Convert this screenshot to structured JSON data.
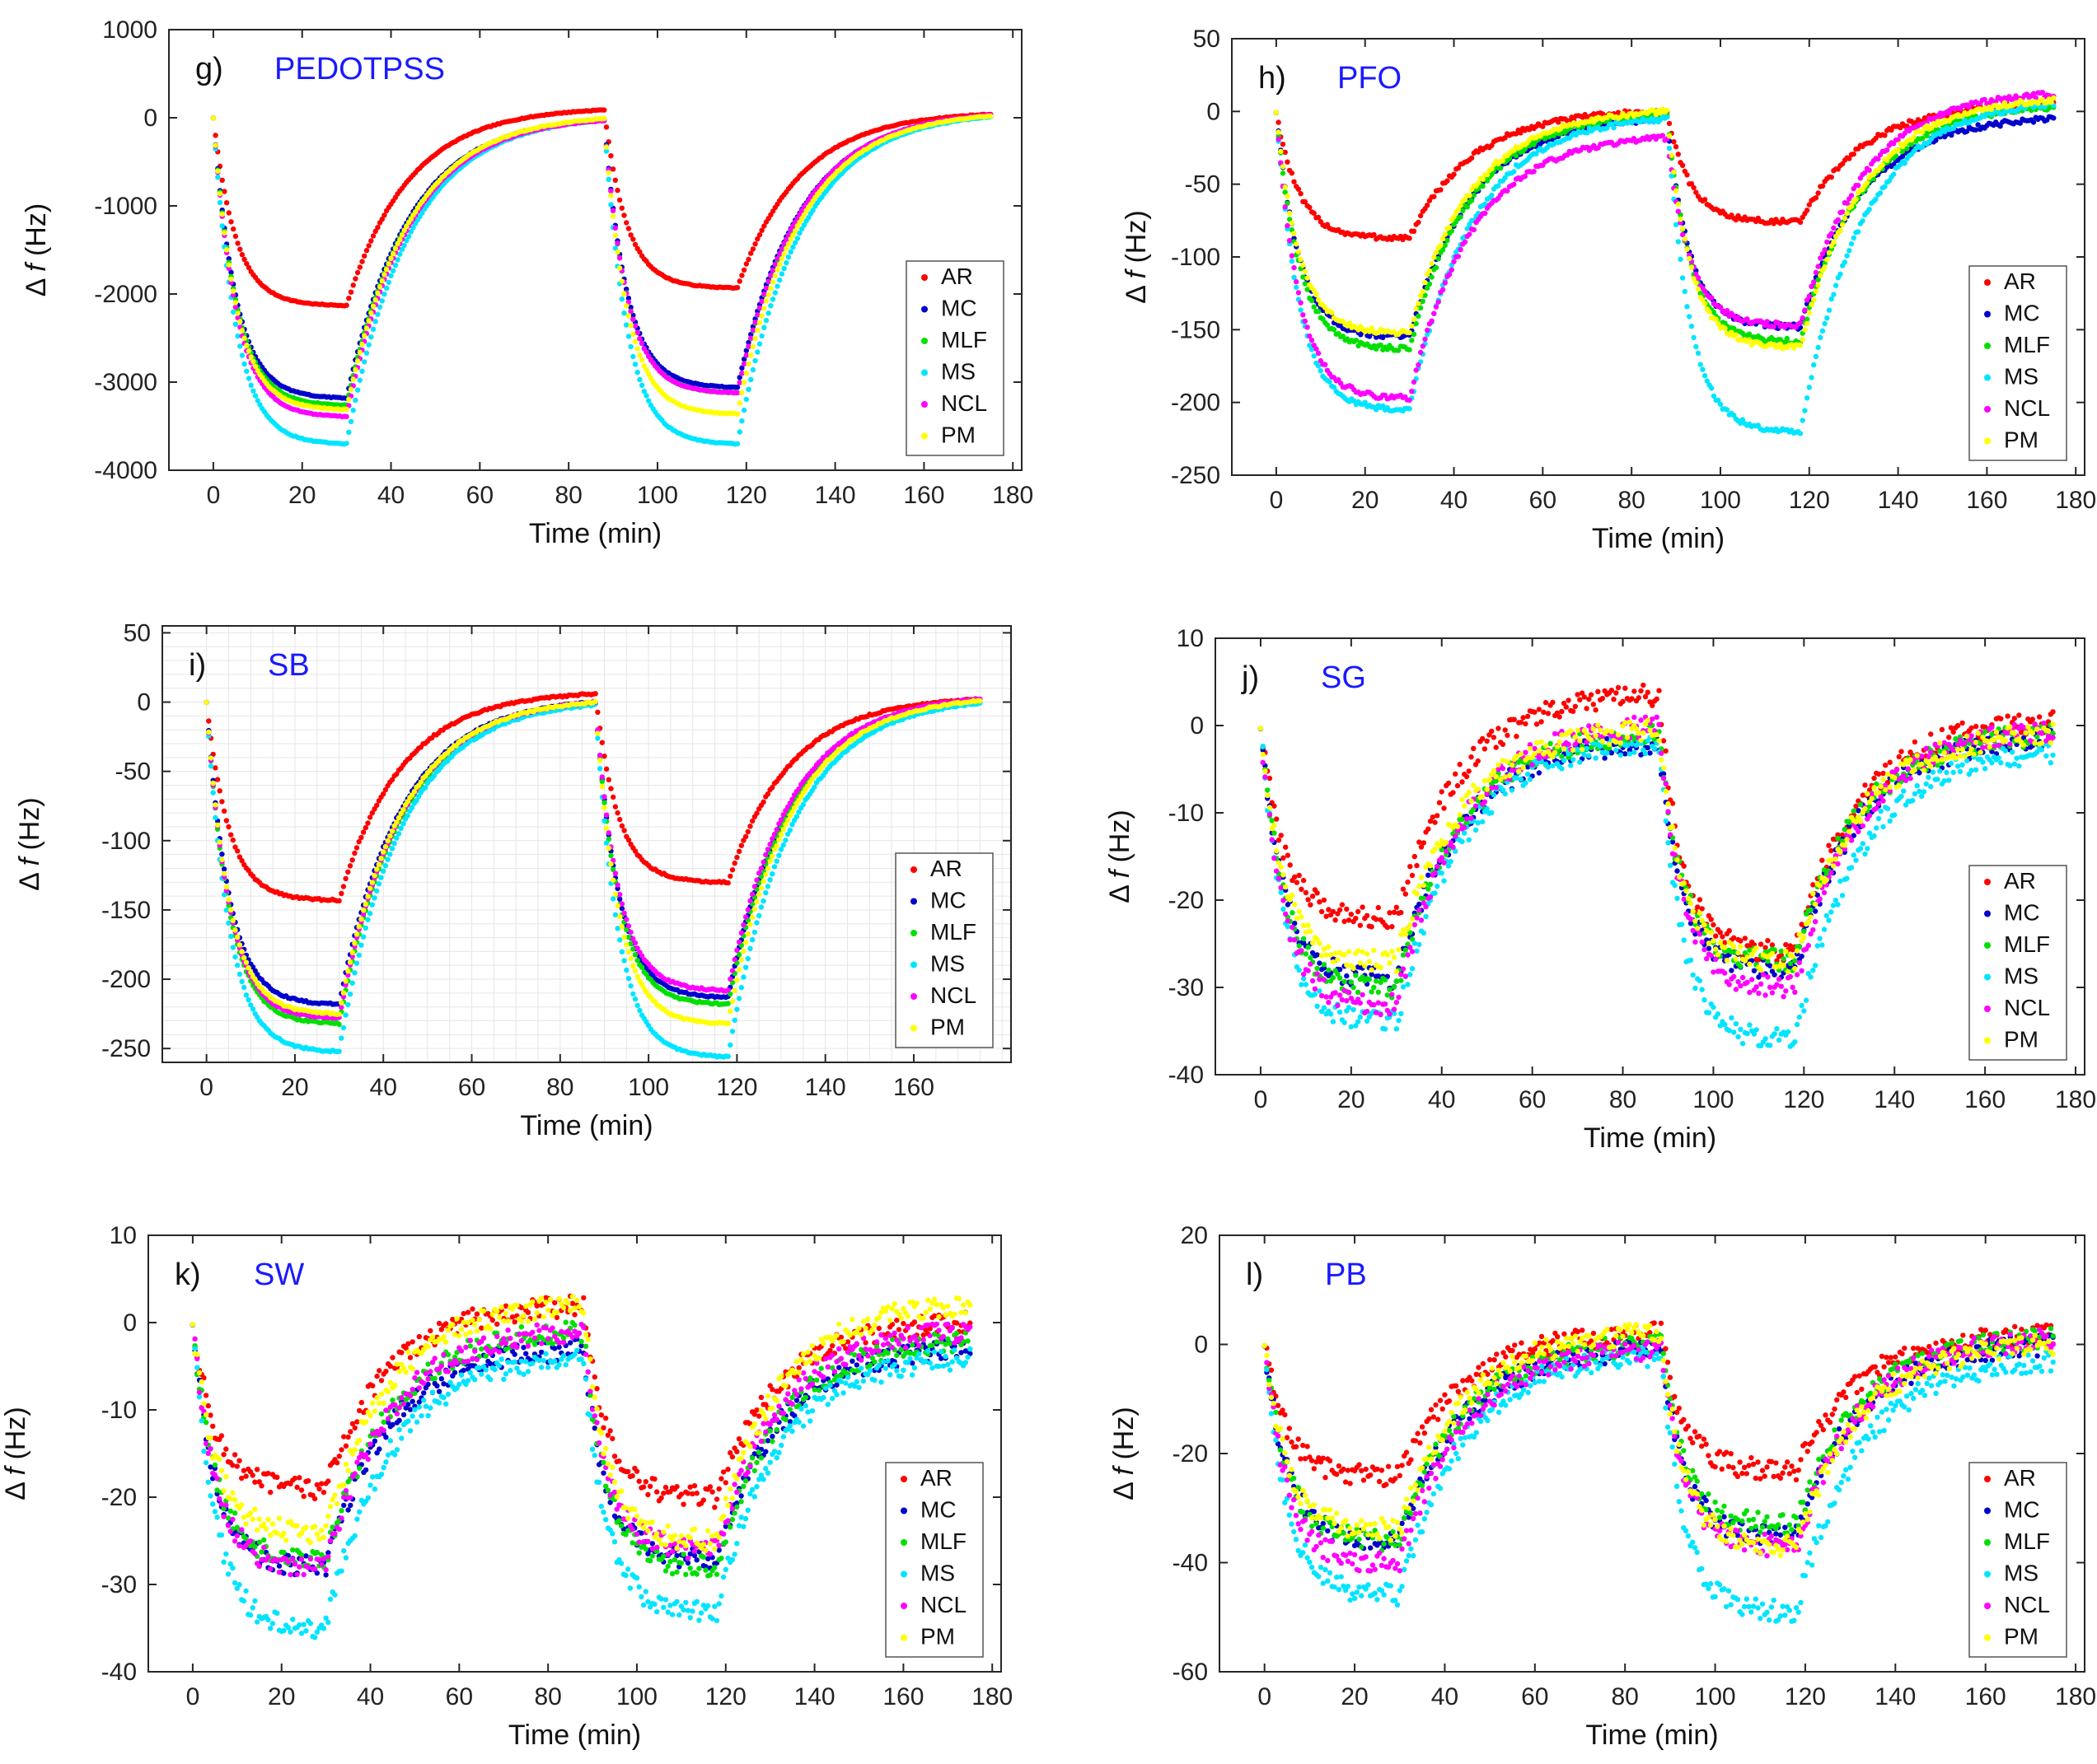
{
  "figure": {
    "legend_labels": [
      "AR",
      "MC",
      "MLF",
      "MS",
      "NCL",
      "PM"
    ],
    "series_colors": {
      "AR": "#ff0000",
      "MC": "#0000cc",
      "MLF": "#00e000",
      "MS": "#00e5ff",
      "NCL": "#ff00ff",
      "PM": "#ffff00"
    },
    "title_label_color": "#111111",
    "title_name_color": "#1a1aff"
  },
  "chart_data": [
    {
      "type": "scatter",
      "panel_label": "g)",
      "title": "PEDOTPSS",
      "xlabel": "Time (min)",
      "ylabel_prefix": "Δ ",
      "ylabel_var": "f",
      "ylabel_unit": " (Hz)",
      "xlim": [
        -10,
        182
      ],
      "ylim": [
        -4000,
        1000
      ],
      "xticks": [
        0,
        20,
        40,
        60,
        80,
        100,
        120,
        140,
        160,
        180
      ],
      "yticks": [
        -4000,
        -3000,
        -2000,
        -1000,
        0,
        1000
      ],
      "grid": false,
      "legend_position": "lower-right",
      "time_markers": [
        0,
        30,
        88,
        118,
        175
      ],
      "series": [
        {
          "name": "AR",
          "min1": -2130,
          "end1": 90,
          "min2": -1930,
          "end2": 40
        },
        {
          "name": "MC",
          "min1": -3180,
          "end1": -20,
          "min2": -3060,
          "end2": 20
        },
        {
          "name": "MLF",
          "min1": -3260,
          "end1": -30,
          "min2": -3120,
          "end2": 20
        },
        {
          "name": "MS",
          "min1": -3700,
          "end1": -30,
          "min2": -3700,
          "end2": 10
        },
        {
          "name": "NCL",
          "min1": -3390,
          "end1": -30,
          "min2": -3120,
          "end2": 30
        },
        {
          "name": "PM",
          "min1": -3310,
          "end1": -10,
          "min2": -3360,
          "end2": 20
        }
      ]
    },
    {
      "type": "scatter",
      "panel_label": "h)",
      "title": "PFO",
      "xlabel": "Time (min)",
      "ylabel_prefix": "Δ ",
      "ylabel_var": "f",
      "ylabel_unit": " (Hz)",
      "xlim": [
        -10,
        182
      ],
      "ylim": [
        -250,
        50
      ],
      "xticks": [
        0,
        20,
        40,
        60,
        80,
        100,
        120,
        140,
        160,
        180
      ],
      "yticks": [
        -250,
        -200,
        -150,
        -100,
        -50,
        0,
        50
      ],
      "grid": false,
      "legend_position": "lower-right",
      "time_markers": [
        0,
        30,
        88,
        118,
        175
      ],
      "series": [
        {
          "name": "AR",
          "min1": -87,
          "end1": 0,
          "min2": -76,
          "end2": 5
        },
        {
          "name": "MC",
          "min1": -155,
          "end1": -5,
          "min2": -148,
          "end2": -5
        },
        {
          "name": "MLF",
          "min1": -163,
          "end1": -2,
          "min2": -158,
          "end2": 3
        },
        {
          "name": "MS",
          "min1": -205,
          "end1": -5,
          "min2": -220,
          "end2": 5
        },
        {
          "name": "NCL",
          "min1": -197,
          "end1": -18,
          "min2": -147,
          "end2": 12
        },
        {
          "name": "PM",
          "min1": -152,
          "end1": 0,
          "min2": -162,
          "end2": 8
        }
      ]
    },
    {
      "type": "scatter",
      "panel_label": "i)",
      "title": "SB",
      "xlabel": "Time (min)",
      "ylabel_prefix": "Δ ",
      "ylabel_var": "f",
      "ylabel_unit": " (Hz)",
      "xlim": [
        -10,
        182
      ],
      "ylim": [
        -260,
        55
      ],
      "xticks": [
        0,
        20,
        40,
        60,
        80,
        100,
        120,
        140,
        160
      ],
      "yticks": [
        -250,
        -200,
        -150,
        -100,
        -50,
        0,
        50
      ],
      "grid": true,
      "legend_position": "lower-right",
      "time_markers": [
        0,
        30,
        88,
        118,
        175
      ],
      "series": [
        {
          "name": "AR",
          "min1": -143,
          "end1": 6,
          "min2": -130,
          "end2": 2
        },
        {
          "name": "MC",
          "min1": -218,
          "end1": 0,
          "min2": -213,
          "end2": 0
        },
        {
          "name": "MLF",
          "min1": -232,
          "end1": -1,
          "min2": -218,
          "end2": 0
        },
        {
          "name": "MS",
          "min1": -252,
          "end1": -2,
          "min2": -256,
          "end2": -1
        },
        {
          "name": "NCL",
          "min1": -228,
          "end1": 0,
          "min2": -208,
          "end2": 2
        },
        {
          "name": "PM",
          "min1": -225,
          "end1": 0,
          "min2": -232,
          "end2": 1
        }
      ]
    },
    {
      "type": "scatter",
      "panel_label": "j)",
      "title": "SG",
      "xlabel": "Time (min)",
      "ylabel_prefix": "Δ ",
      "ylabel_var": "f",
      "ylabel_unit": " (Hz)",
      "xlim": [
        -10,
        182
      ],
      "ylim": [
        -40,
        10
      ],
      "xticks": [
        0,
        20,
        40,
        60,
        80,
        100,
        120,
        140,
        160,
        180
      ],
      "yticks": [
        -40,
        -30,
        -20,
        -10,
        0,
        10
      ],
      "grid": false,
      "legend_position": "lower-right",
      "time_markers": [
        0,
        30,
        88,
        118,
        175
      ],
      "series": [
        {
          "name": "AR",
          "min1": -22,
          "end1": 3.5,
          "min2": -26,
          "end2": 0.5
        },
        {
          "name": "MC",
          "min1": -29,
          "end1": -2,
          "min2": -28,
          "end2": -1.5
        },
        {
          "name": "MLF",
          "min1": -30,
          "end1": -1,
          "min2": -27,
          "end2": -1
        },
        {
          "name": "MS",
          "min1": -34,
          "end1": -2,
          "min2": -36,
          "end2": -3
        },
        {
          "name": "NCL",
          "min1": -32,
          "end1": 0,
          "min2": -30,
          "end2": -0.5
        },
        {
          "name": "PM",
          "min1": -27,
          "end1": -0.5,
          "min2": -27,
          "end2": -1
        }
      ]
    },
    {
      "type": "scatter",
      "panel_label": "k)",
      "title": "SW",
      "xlabel": "Time (min)",
      "ylabel_prefix": "Δ ",
      "ylabel_var": "f",
      "ylabel_unit": " (Hz)",
      "xlim": [
        -10,
        182
      ],
      "ylim": [
        -40,
        10
      ],
      "xticks": [
        0,
        20,
        40,
        60,
        80,
        100,
        120,
        140,
        160,
        180
      ],
      "yticks": [
        -40,
        -30,
        -20,
        -10,
        0,
        10
      ],
      "grid": false,
      "legend_position": "lower-right",
      "time_markers": [
        0,
        30,
        88,
        118,
        175
      ],
      "series": [
        {
          "name": "AR",
          "min1": -19,
          "end1": 2,
          "min2": -20,
          "end2": 0
        },
        {
          "name": "MC",
          "min1": -28,
          "end1": -3,
          "min2": -27,
          "end2": -3
        },
        {
          "name": "MLF",
          "min1": -27,
          "end1": -1,
          "min2": -28,
          "end2": -2
        },
        {
          "name": "MS",
          "min1": -35,
          "end1": -4,
          "min2": -33,
          "end2": -4
        },
        {
          "name": "NCL",
          "min1": -28,
          "end1": -1,
          "min2": -26,
          "end2": -1
        },
        {
          "name": "PM",
          "min1": -24,
          "end1": 2,
          "min2": -25,
          "end2": 2
        }
      ]
    },
    {
      "type": "scatter",
      "panel_label": "l)",
      "title": "PB",
      "xlabel": "Time (min)",
      "ylabel_prefix": "Δ ",
      "ylabel_var": "f",
      "ylabel_unit": " (Hz)",
      "xlim": [
        -10,
        182
      ],
      "ylim": [
        -60,
        20
      ],
      "xticks": [
        0,
        20,
        40,
        60,
        80,
        100,
        120,
        140,
        160,
        180
      ],
      "yticks": [
        -60,
        -40,
        -20,
        0,
        20
      ],
      "grid": false,
      "legend_position": "lower-right",
      "time_markers": [
        0,
        30,
        88,
        118,
        175
      ],
      "series": [
        {
          "name": "AR",
          "min1": -24,
          "end1": 2,
          "min2": -23,
          "end2": 2
        },
        {
          "name": "MC",
          "min1": -36,
          "end1": -1,
          "min2": -35,
          "end2": 0
        },
        {
          "name": "MLF",
          "min1": -36,
          "end1": 0,
          "min2": -33,
          "end2": 1
        },
        {
          "name": "MS",
          "min1": -46,
          "end1": -2,
          "min2": -49,
          "end2": -3
        },
        {
          "name": "NCL",
          "min1": -40,
          "end1": -1,
          "min2": -37,
          "end2": 1
        },
        {
          "name": "PM",
          "min1": -34,
          "end1": 2,
          "min2": -37,
          "end2": 0
        }
      ]
    }
  ]
}
